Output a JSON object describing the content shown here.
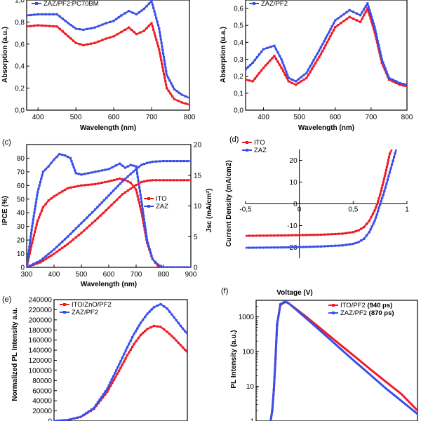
{
  "colors": {
    "red": "#ee1c25",
    "blue": "#3a4fe8",
    "axis": "#000000"
  },
  "chart_data": [
    {
      "id": "a",
      "panel_label": "",
      "type": "line",
      "xlabel": "Wavelength (nm)",
      "ylabel": "Absorption (a.u.)",
      "xlim": [
        370,
        800
      ],
      "ylim": [
        0,
        1.0
      ],
      "xticks": [
        "400",
        "500",
        "600",
        "700",
        "800"
      ],
      "yticks": [
        "0,0",
        "0,2",
        "0,4",
        "0,6",
        "0,8",
        "1,0"
      ],
      "legend_position": "top-left",
      "series": [
        {
          "name": "",
          "color": "red",
          "x": [
            370,
            400,
            450,
            480,
            500,
            520,
            550,
            580,
            600,
            620,
            640,
            660,
            680,
            700,
            720,
            740,
            760,
            780,
            800
          ],
          "y": [
            0.76,
            0.77,
            0.76,
            0.67,
            0.61,
            0.59,
            0.61,
            0.65,
            0.67,
            0.71,
            0.75,
            0.69,
            0.72,
            0.79,
            0.55,
            0.2,
            0.1,
            0.07,
            0.05
          ]
        },
        {
          "name": "ZAZ/PF2:PC70BM",
          "color": "blue",
          "x": [
            370,
            400,
            450,
            480,
            500,
            520,
            550,
            580,
            600,
            620,
            640,
            660,
            680,
            700,
            720,
            740,
            760,
            780,
            800
          ],
          "y": [
            0.86,
            0.87,
            0.87,
            0.79,
            0.74,
            0.73,
            0.75,
            0.79,
            0.81,
            0.86,
            0.9,
            0.87,
            0.92,
            0.99,
            0.74,
            0.32,
            0.19,
            0.14,
            0.11
          ]
        }
      ]
    },
    {
      "id": "b",
      "panel_label": "",
      "type": "line",
      "xlabel": "Wavelength (nm)",
      "ylabel": "Absorption (u.a.)",
      "xlim": [
        350,
        800
      ],
      "ylim": [
        0,
        0.65
      ],
      "xticks": [
        "400",
        "500",
        "600",
        "700",
        "800"
      ],
      "yticks": [
        "0,0",
        "0,1",
        "0,2",
        "0,3",
        "0,4",
        "0,5",
        "0,6"
      ],
      "legend_position": "top-left",
      "series": [
        {
          "name": "",
          "color": "red",
          "x": [
            350,
            370,
            400,
            430,
            450,
            470,
            490,
            520,
            560,
            600,
            640,
            670,
            690,
            710,
            730,
            750,
            780,
            800
          ],
          "y": [
            0.18,
            0.17,
            0.25,
            0.32,
            0.25,
            0.17,
            0.15,
            0.19,
            0.33,
            0.49,
            0.55,
            0.52,
            0.6,
            0.46,
            0.28,
            0.18,
            0.15,
            0.14
          ]
        },
        {
          "name": "ZAZ/PF2",
          "color": "blue",
          "x": [
            350,
            370,
            400,
            430,
            450,
            470,
            490,
            520,
            560,
            600,
            640,
            670,
            690,
            710,
            730,
            750,
            780,
            800
          ],
          "y": [
            0.24,
            0.28,
            0.36,
            0.38,
            0.3,
            0.19,
            0.17,
            0.22,
            0.37,
            0.53,
            0.59,
            0.56,
            0.63,
            0.49,
            0.3,
            0.19,
            0.16,
            0.15
          ]
        }
      ]
    },
    {
      "id": "c",
      "panel_label": "(c)",
      "type": "line",
      "xlabel": "Wavelength (nm)",
      "ylabel": "IPCE (%)",
      "ylabel_right": "Jsc (mA/cm²)",
      "xlim": [
        300,
        900
      ],
      "ylim": [
        0,
        90
      ],
      "ylim_right": [
        0,
        20
      ],
      "xticks": [
        "300",
        "400",
        "500",
        "600",
        "700",
        "800",
        "900"
      ],
      "yticks": [
        "0",
        "10",
        "20",
        "30",
        "40",
        "50",
        "60",
        "70",
        "80"
      ],
      "yticks_right": [
        "0",
        "5",
        "10",
        "15",
        "20"
      ],
      "legend_position": "center-right",
      "series": [
        {
          "name": "ITO",
          "color": "red",
          "x": [
            300,
            320,
            340,
            360,
            380,
            400,
            450,
            500,
            550,
            600,
            620,
            640,
            660,
            680,
            700,
            720,
            740,
            760,
            780,
            800,
            850,
            900
          ],
          "y": [
            0,
            18,
            34,
            44,
            49,
            52,
            58,
            60,
            61,
            63,
            64,
            65,
            64,
            62,
            57,
            40,
            18,
            6,
            1,
            0,
            0,
            0
          ]
        },
        {
          "name": "ZAZ",
          "color": "blue",
          "x": [
            300,
            320,
            340,
            360,
            380,
            400,
            420,
            440,
            460,
            480,
            500,
            550,
            600,
            640,
            660,
            680,
            700,
            720,
            740,
            760,
            780,
            800,
            850,
            900
          ],
          "y": [
            0,
            30,
            55,
            70,
            74,
            79,
            83,
            82,
            80,
            69,
            68,
            70,
            72,
            76,
            73,
            75,
            74,
            48,
            20,
            6,
            2,
            0,
            0,
            0
          ]
        },
        {
          "name": "",
          "axis": "right",
          "color": "red",
          "x": [
            300,
            350,
            400,
            450,
            500,
            550,
            600,
            650,
            700,
            720,
            740,
            760,
            800,
            850,
            900
          ],
          "y": [
            0,
            0.8,
            2.2,
            3.8,
            5.6,
            7.6,
            9.7,
            11.9,
            13.4,
            13.9,
            14.1,
            14.2,
            14.2,
            14.2,
            14.2
          ]
        },
        {
          "name": "",
          "axis": "right",
          "color": "blue",
          "x": [
            300,
            350,
            400,
            450,
            500,
            550,
            600,
            650,
            700,
            720,
            740,
            760,
            800,
            850,
            900
          ],
          "y": [
            0,
            1.1,
            2.9,
            5.0,
            7.2,
            9.4,
            11.7,
            14.0,
            16.0,
            16.7,
            17.0,
            17.2,
            17.3,
            17.3,
            17.3
          ]
        }
      ]
    },
    {
      "id": "d",
      "panel_label": "(d)",
      "type": "line",
      "xlabel": "Voltage (V)",
      "ylabel": "Current Density (mA/cm2)",
      "xlim": [
        -0.5,
        1.0
      ],
      "ylim": [
        -25,
        25
      ],
      "xticks": [
        "-0,5",
        "0",
        "0,5",
        "1"
      ],
      "yticks": [
        "-20",
        "-10",
        "0",
        "10",
        "20"
      ],
      "legend_position": "top-left",
      "series": [
        {
          "name": "ITO",
          "color": "red",
          "x": [
            -0.5,
            -0.3,
            -0.1,
            0.0,
            0.2,
            0.4,
            0.5,
            0.55,
            0.6,
            0.65,
            0.7,
            0.72,
            0.74,
            0.76,
            0.78,
            0.8,
            0.82,
            0.84,
            0.86
          ],
          "y": [
            -14.7,
            -14.6,
            -14.5,
            -14.4,
            -14.2,
            -13.7,
            -13.0,
            -12.2,
            -10.7,
            -7.8,
            -3.0,
            -0.5,
            2.5,
            6.0,
            10.0,
            14.0,
            18.5,
            23.0,
            25.0
          ]
        },
        {
          "name": "ZAZ",
          "color": "blue",
          "x": [
            -0.5,
            -0.3,
            -0.1,
            0.0,
            0.2,
            0.4,
            0.5,
            0.55,
            0.6,
            0.65,
            0.7,
            0.72,
            0.74,
            0.76,
            0.78,
            0.8,
            0.82,
            0.84,
            0.86,
            0.88,
            0.9
          ],
          "y": [
            -20.2,
            -20.1,
            -20.0,
            -19.9,
            -19.6,
            -19.1,
            -18.4,
            -17.6,
            -16.1,
            -13.0,
            -7.8,
            -5.0,
            -1.8,
            1.2,
            4.2,
            7.5,
            11.0,
            14.5,
            18.0,
            21.5,
            25.0
          ]
        }
      ]
    },
    {
      "id": "e",
      "panel_label": "(e)",
      "type": "line",
      "ylabel": "Normalized PL Intensity a.u.",
      "xlim": [
        0,
        100
      ],
      "ylim": [
        0,
        240000
      ],
      "yticks": [
        "0",
        "20000",
        "40000",
        "60000",
        "80000",
        "100000",
        "120000",
        "140000",
        "160000",
        "180000",
        "200000",
        "220000",
        "240000"
      ],
      "legend_position": "top-left",
      "series": [
        {
          "name": "ITO/ZnO/PF2",
          "color": "red",
          "x": [
            0,
            10,
            20,
            30,
            40,
            50,
            55,
            60,
            65,
            70,
            75,
            80,
            85,
            90,
            95,
            100
          ],
          "y": [
            0,
            2000,
            8000,
            24000,
            58000,
            105000,
            130000,
            152000,
            170000,
            182000,
            188000,
            186000,
            176000,
            164000,
            150000,
            136000
          ]
        },
        {
          "name": "ZAZ/PF2",
          "color": "blue",
          "x": [
            0,
            10,
            20,
            30,
            40,
            50,
            55,
            60,
            65,
            70,
            75,
            80,
            85,
            90,
            95,
            100
          ],
          "y": [
            0,
            2000,
            8000,
            26000,
            64000,
            118000,
            146000,
            172000,
            194000,
            212000,
            225000,
            231000,
            222000,
            205000,
            188000,
            172000
          ]
        }
      ]
    },
    {
      "id": "f",
      "panel_label": "(f)",
      "type": "line",
      "ylabel": "PL Intensity (a.u.)",
      "yscale": "log",
      "xlim": [
        0,
        100
      ],
      "ylim": [
        1,
        3000
      ],
      "yticks": [
        "1",
        "10",
        "100",
        "1000"
      ],
      "legend_position": "top-right",
      "legend_extra": [
        " (940 ps)",
        " (870 ps)"
      ],
      "series": [
        {
          "name": "ITO/PF2",
          "color": "red",
          "x": [
            9,
            10,
            11,
            12,
            13,
            15,
            18,
            20,
            30,
            40,
            50,
            60,
            70,
            80,
            90,
            100
          ],
          "y": [
            1,
            2,
            8,
            60,
            600,
            2200,
            2700,
            2500,
            1100,
            460,
            190,
            80,
            33,
            14,
            6,
            2
          ]
        },
        {
          "name": "ZAZ/PF2",
          "color": "blue",
          "x": [
            9,
            10,
            11,
            12,
            13,
            15,
            18,
            20,
            30,
            40,
            50,
            60,
            70,
            80,
            90,
            100
          ],
          "y": [
            1,
            2,
            8,
            60,
            600,
            2300,
            2800,
            2500,
            1000,
            390,
            150,
            58,
            23,
            9,
            3.8,
            1.6
          ]
        }
      ]
    }
  ]
}
